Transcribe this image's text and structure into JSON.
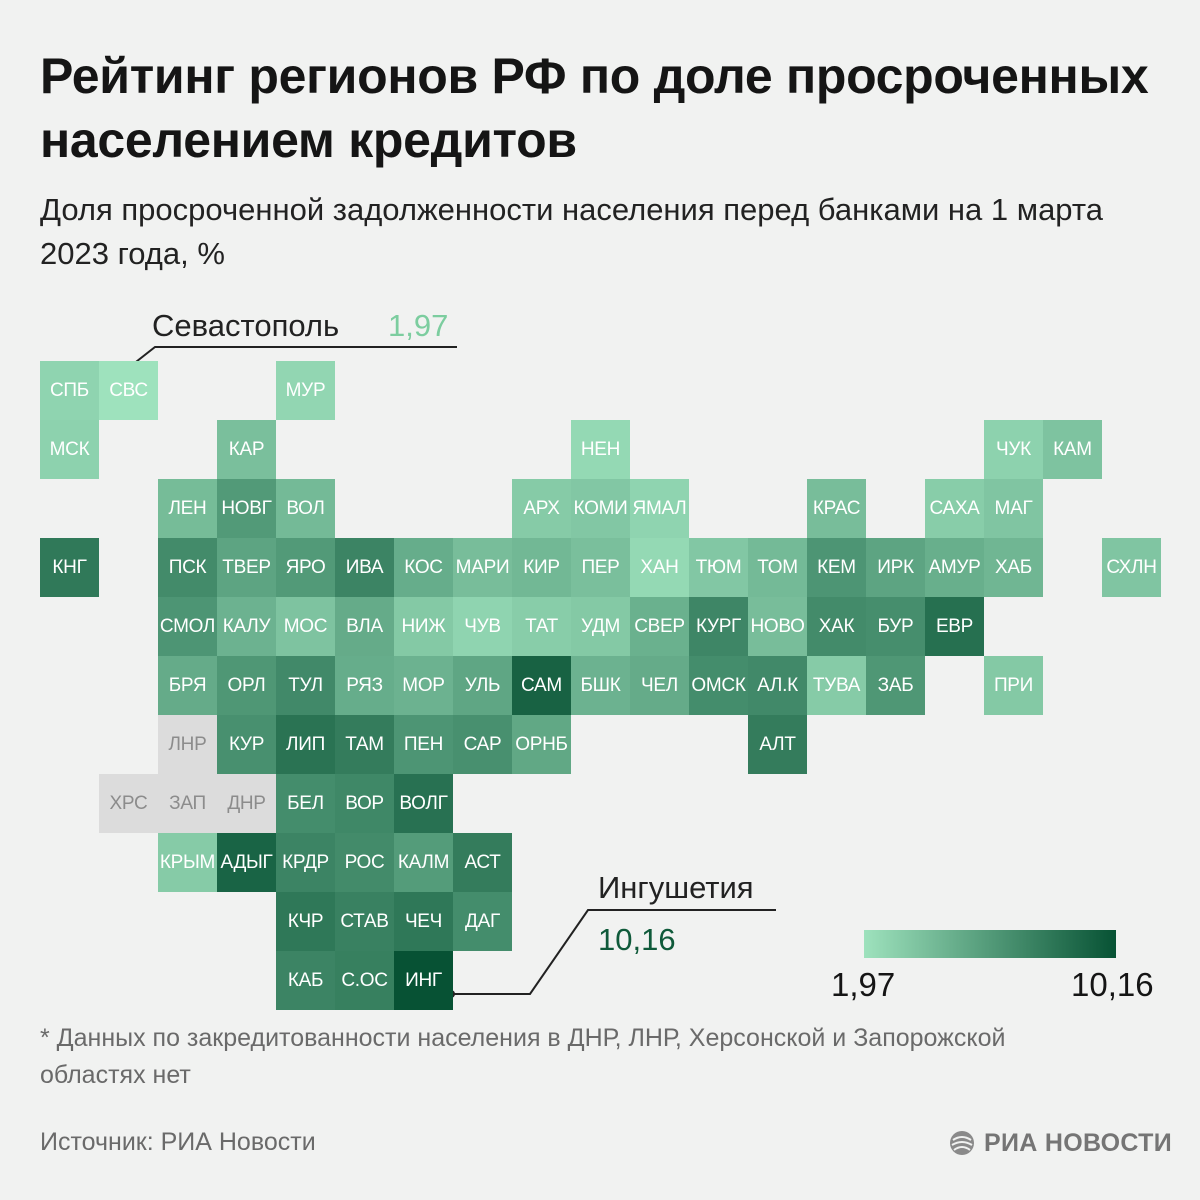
{
  "title": "Рейтинг регионов РФ по доле просроченных населением кредитов",
  "subtitle": "Доля просроченной задолженности населения перед банками на 1 марта 2023 года, %",
  "callouts": {
    "min": {
      "name": "Севастополь",
      "value": "1,97"
    },
    "max": {
      "name": "Ингушетия",
      "value": "10,16"
    }
  },
  "legend": {
    "min_label": "1,97",
    "max_label": "10,16"
  },
  "footnote": "* Данных по закредитованности населения в ДНР, ЛНР, Херсонской и Запорожской областях нет",
  "source": "Источник: РИА Новости",
  "logo_text": "РИА НОВОСТИ",
  "colors": {
    "background": "#f1f2f1",
    "scale_min": "#9ee2bd",
    "scale_max": "#075234",
    "no_data": "#dcdcdc",
    "callout_min_text": "#7ccd9f",
    "callout_max_text": "#0f5a3a"
  },
  "map": {
    "value_range": [
      1.97,
      10.16
    ],
    "regions": [
      {
        "code": "СПБ",
        "row": 0,
        "col": 0,
        "value": 2.5
      },
      {
        "code": "СВС",
        "row": 0,
        "col": 1,
        "value": 1.97
      },
      {
        "code": "МУР",
        "row": 0,
        "col": 4,
        "value": 2.4
      },
      {
        "code": "МСК",
        "row": 1,
        "col": 0,
        "value": 2.6
      },
      {
        "code": "КАР",
        "row": 1,
        "col": 3,
        "value": 3.5
      },
      {
        "code": "НЕН",
        "row": 1,
        "col": 9,
        "value": 2.3
      },
      {
        "code": "ЧУК",
        "row": 1,
        "col": 16,
        "value": 2.6
      },
      {
        "code": "КАМ",
        "row": 1,
        "col": 17,
        "value": 3.3
      },
      {
        "code": "ЛЕН",
        "row": 2,
        "col": 2,
        "value": 3.7
      },
      {
        "code": "НОВГ",
        "row": 2,
        "col": 3,
        "value": 5.6
      },
      {
        "code": "ВОЛ",
        "row": 2,
        "col": 4,
        "value": 3.8
      },
      {
        "code": "АРХ",
        "row": 2,
        "col": 8,
        "value": 2.9
      },
      {
        "code": "КОМИ",
        "row": 2,
        "col": 9,
        "value": 3.1
      },
      {
        "code": "ЯМАЛ",
        "row": 2,
        "col": 10,
        "value": 2.5
      },
      {
        "code": "КРАС",
        "row": 2,
        "col": 13,
        "value": 3.6
      },
      {
        "code": "САХА",
        "row": 2,
        "col": 15,
        "value": 2.8
      },
      {
        "code": "МАГ",
        "row": 2,
        "col": 16,
        "value": 3.2
      },
      {
        "code": "КНГ",
        "row": 3,
        "col": 0,
        "value": 7.6
      },
      {
        "code": "ПСК",
        "row": 3,
        "col": 2,
        "value": 6.5
      },
      {
        "code": "ТВЕР",
        "row": 3,
        "col": 3,
        "value": 5.0
      },
      {
        "code": "ЯРО",
        "row": 3,
        "col": 4,
        "value": 5.6
      },
      {
        "code": "ИВА",
        "row": 3,
        "col": 5,
        "value": 6.9
      },
      {
        "code": "КОС",
        "row": 3,
        "col": 6,
        "value": 4.5
      },
      {
        "code": "МАРИ",
        "row": 3,
        "col": 7,
        "value": 3.6
      },
      {
        "code": "КИР",
        "row": 3,
        "col": 8,
        "value": 3.9
      },
      {
        "code": "ПЕР",
        "row": 3,
        "col": 9,
        "value": 3.5
      },
      {
        "code": "ХАН",
        "row": 3,
        "col": 10,
        "value": 2.3
      },
      {
        "code": "ТЮМ",
        "row": 3,
        "col": 11,
        "value": 3.1
      },
      {
        "code": "ТОМ",
        "row": 3,
        "col": 12,
        "value": 3.8
      },
      {
        "code": "КЕМ",
        "row": 3,
        "col": 13,
        "value": 5.9
      },
      {
        "code": "ИРК",
        "row": 3,
        "col": 14,
        "value": 5.0
      },
      {
        "code": "АМУР",
        "row": 3,
        "col": 15,
        "value": 4.4
      },
      {
        "code": "ХАБ",
        "row": 3,
        "col": 16,
        "value": 4.0
      },
      {
        "code": "СХЛН",
        "row": 3,
        "col": 18,
        "value": 3.2
      },
      {
        "code": "СМОЛ",
        "row": 4,
        "col": 2,
        "value": 5.9
      },
      {
        "code": "КАЛУ",
        "row": 4,
        "col": 3,
        "value": 4.2
      },
      {
        "code": "МОС",
        "row": 4,
        "col": 4,
        "value": 3.3
      },
      {
        "code": "ВЛА",
        "row": 4,
        "col": 5,
        "value": 4.6
      },
      {
        "code": "НИЖ",
        "row": 4,
        "col": 6,
        "value": 3.0
      },
      {
        "code": "ЧУВ",
        "row": 4,
        "col": 7,
        "value": 2.5
      },
      {
        "code": "ТАТ",
        "row": 4,
        "col": 8,
        "value": 2.8
      },
      {
        "code": "УДМ",
        "row": 4,
        "col": 9,
        "value": 3.0
      },
      {
        "code": "СВЕР",
        "row": 4,
        "col": 10,
        "value": 4.3
      },
      {
        "code": "КУРГ",
        "row": 4,
        "col": 11,
        "value": 6.8
      },
      {
        "code": "НОВО",
        "row": 4,
        "col": 12,
        "value": 3.6
      },
      {
        "code": "ХАК",
        "row": 4,
        "col": 13,
        "value": 6.5
      },
      {
        "code": "БУР",
        "row": 4,
        "col": 14,
        "value": 6.3
      },
      {
        "code": "ЕВР",
        "row": 4,
        "col": 15,
        "value": 8.2
      },
      {
        "code": "БРЯ",
        "row": 5,
        "col": 2,
        "value": 4.6
      },
      {
        "code": "ОРЛ",
        "row": 5,
        "col": 3,
        "value": 5.8
      },
      {
        "code": "ТУЛ",
        "row": 5,
        "col": 4,
        "value": 6.6
      },
      {
        "code": "РЯЗ",
        "row": 5,
        "col": 5,
        "value": 4.5
      },
      {
        "code": "МОР",
        "row": 5,
        "col": 6,
        "value": 4.2
      },
      {
        "code": "УЛЬ",
        "row": 5,
        "col": 7,
        "value": 4.9
      },
      {
        "code": "САМ",
        "row": 5,
        "col": 8,
        "value": 9.1
      },
      {
        "code": "БШК",
        "row": 5,
        "col": 9,
        "value": 4.2
      },
      {
        "code": "ЧЕЛ",
        "row": 5,
        "col": 10,
        "value": 4.6
      },
      {
        "code": "ОМСК",
        "row": 5,
        "col": 11,
        "value": 6.4
      },
      {
        "code": "АЛ.К",
        "row": 5,
        "col": 12,
        "value": 6.6
      },
      {
        "code": "ТУВА",
        "row": 5,
        "col": 13,
        "value": 2.9
      },
      {
        "code": "ЗАБ",
        "row": 5,
        "col": 14,
        "value": 5.8
      },
      {
        "code": "ПРИ",
        "row": 5,
        "col": 16,
        "value": 3.0
      },
      {
        "code": "ЛНР",
        "row": 6,
        "col": 2,
        "value": null
      },
      {
        "code": "КУР",
        "row": 6,
        "col": 3,
        "value": 6.2
      },
      {
        "code": "ЛИП",
        "row": 6,
        "col": 4,
        "value": 8.0
      },
      {
        "code": "ТАМ",
        "row": 6,
        "col": 5,
        "value": 7.4
      },
      {
        "code": "ПЕН",
        "row": 6,
        "col": 6,
        "value": 5.9
      },
      {
        "code": "САР",
        "row": 6,
        "col": 7,
        "value": 6.2
      },
      {
        "code": "ОРНБ",
        "row": 6,
        "col": 8,
        "value": 4.8
      },
      {
        "code": "АЛТ",
        "row": 6,
        "col": 12,
        "value": 7.4
      },
      {
        "code": "ХРС",
        "row": 7,
        "col": 1,
        "value": null
      },
      {
        "code": "ЗАП",
        "row": 7,
        "col": 2,
        "value": null
      },
      {
        "code": "ДНР",
        "row": 7,
        "col": 3,
        "value": null
      },
      {
        "code": "БЕЛ",
        "row": 7,
        "col": 4,
        "value": 6.4
      },
      {
        "code": "ВОР",
        "row": 7,
        "col": 5,
        "value": 6.7
      },
      {
        "code": "ВОЛГ",
        "row": 7,
        "col": 6,
        "value": 8.1
      },
      {
        "code": "КРЫМ",
        "row": 8,
        "col": 2,
        "value": 2.9
      },
      {
        "code": "АДЫГ",
        "row": 8,
        "col": 3,
        "value": 9.0
      },
      {
        "code": "КРДР",
        "row": 8,
        "col": 4,
        "value": 6.9
      },
      {
        "code": "РОС",
        "row": 8,
        "col": 5,
        "value": 6.5
      },
      {
        "code": "КАЛМ",
        "row": 8,
        "col": 6,
        "value": 5.5
      },
      {
        "code": "АСТ",
        "row": 8,
        "col": 7,
        "value": 7.4
      },
      {
        "code": "КЧР",
        "row": 9,
        "col": 4,
        "value": 7.7
      },
      {
        "code": "СТАВ",
        "row": 9,
        "col": 5,
        "value": 7.1
      },
      {
        "code": "ЧЕЧ",
        "row": 9,
        "col": 6,
        "value": 7.7
      },
      {
        "code": "ДАГ",
        "row": 9,
        "col": 7,
        "value": 6.4
      },
      {
        "code": "КАБ",
        "row": 10,
        "col": 4,
        "value": 6.9
      },
      {
        "code": "С.ОС",
        "row": 10,
        "col": 5,
        "value": 7.2
      },
      {
        "code": "ИНГ",
        "row": 10,
        "col": 6,
        "value": 10.16
      }
    ]
  }
}
